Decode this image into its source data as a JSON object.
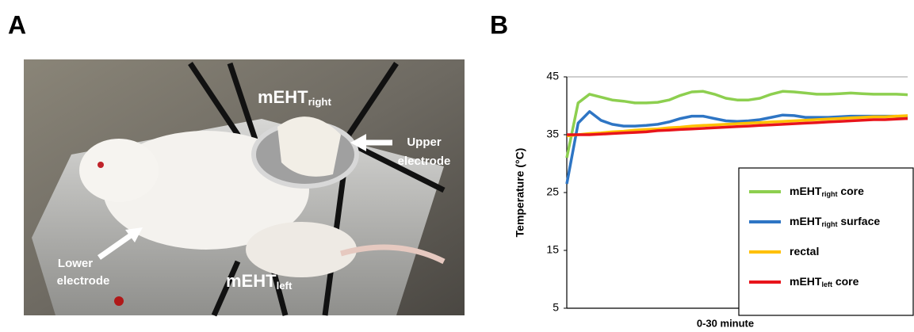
{
  "panels": {
    "a": {
      "label": "A",
      "annotations": {
        "top_electrode_name": [
          "mEHT",
          "right"
        ],
        "upper_electrode": [
          "Upper",
          "electrode"
        ],
        "lower_electrode": [
          "Lower",
          "electrode"
        ],
        "bottom_electrode_name": [
          "mEHT",
          "left"
        ]
      }
    },
    "b": {
      "label": "B"
    }
  },
  "chart_data": {
    "type": "line",
    "ylabel": "Temperature (°C)",
    "xlabel": "0-30 minute",
    "x": [
      0,
      1,
      2,
      3,
      4,
      5,
      6,
      7,
      8,
      9,
      10,
      11,
      12,
      13,
      14,
      15,
      16,
      17,
      18,
      19,
      20,
      21,
      22,
      23,
      24,
      25,
      26,
      27,
      28,
      29,
      30
    ],
    "xlim": [
      0,
      30
    ],
    "ylim": [
      5,
      45
    ],
    "yticks": [
      5,
      15,
      25,
      35,
      45
    ],
    "grid": false,
    "legend": "lower right",
    "series": [
      {
        "name": [
          "mEHT",
          "right",
          " core"
        ],
        "color": "#8dcf4f",
        "values": [
          31,
          40.5,
          42,
          41.5,
          41,
          40.8,
          40.5,
          40.5,
          40.6,
          41,
          41.8,
          42.4,
          42.5,
          42,
          41.3,
          41,
          41,
          41.3,
          42,
          42.5,
          42.4,
          42.2,
          42,
          42,
          42.1,
          42.2,
          42.1,
          42,
          42,
          42,
          41.9
        ]
      },
      {
        "name": [
          "mEHT",
          "right",
          " surface"
        ],
        "color": "#2e75c4",
        "values": [
          26.5,
          37,
          39,
          37.5,
          36.8,
          36.5,
          36.5,
          36.6,
          36.8,
          37.2,
          37.8,
          38.2,
          38.2,
          37.8,
          37.4,
          37.3,
          37.4,
          37.6,
          38,
          38.4,
          38.3,
          38,
          38,
          38,
          38.1,
          38.2,
          38.2,
          38.2,
          38.2,
          38.2,
          38
        ]
      },
      {
        "name": [
          "rectal"
        ],
        "color": "#ffc000",
        "values": [
          34.8,
          35,
          35.2,
          35.3,
          35.5,
          35.6,
          35.8,
          35.9,
          36,
          36.2,
          36.3,
          36.5,
          36.6,
          36.7,
          36.8,
          36.9,
          37,
          37.1,
          37.2,
          37.3,
          37.4,
          37.5,
          37.6,
          37.7,
          37.8,
          37.9,
          38,
          38.1,
          38.1,
          38.2,
          38.3
        ]
      },
      {
        "name": [
          "mEHT",
          "left",
          " core"
        ],
        "color": "#e8141b",
        "values": [
          35,
          35,
          35,
          35.1,
          35.2,
          35.3,
          35.4,
          35.5,
          35.7,
          35.8,
          35.9,
          36,
          36.1,
          36.2,
          36.3,
          36.4,
          36.5,
          36.6,
          36.7,
          36.8,
          36.9,
          37,
          37.1,
          37.2,
          37.3,
          37.4,
          37.5,
          37.6,
          37.6,
          37.7,
          37.8
        ]
      }
    ]
  }
}
